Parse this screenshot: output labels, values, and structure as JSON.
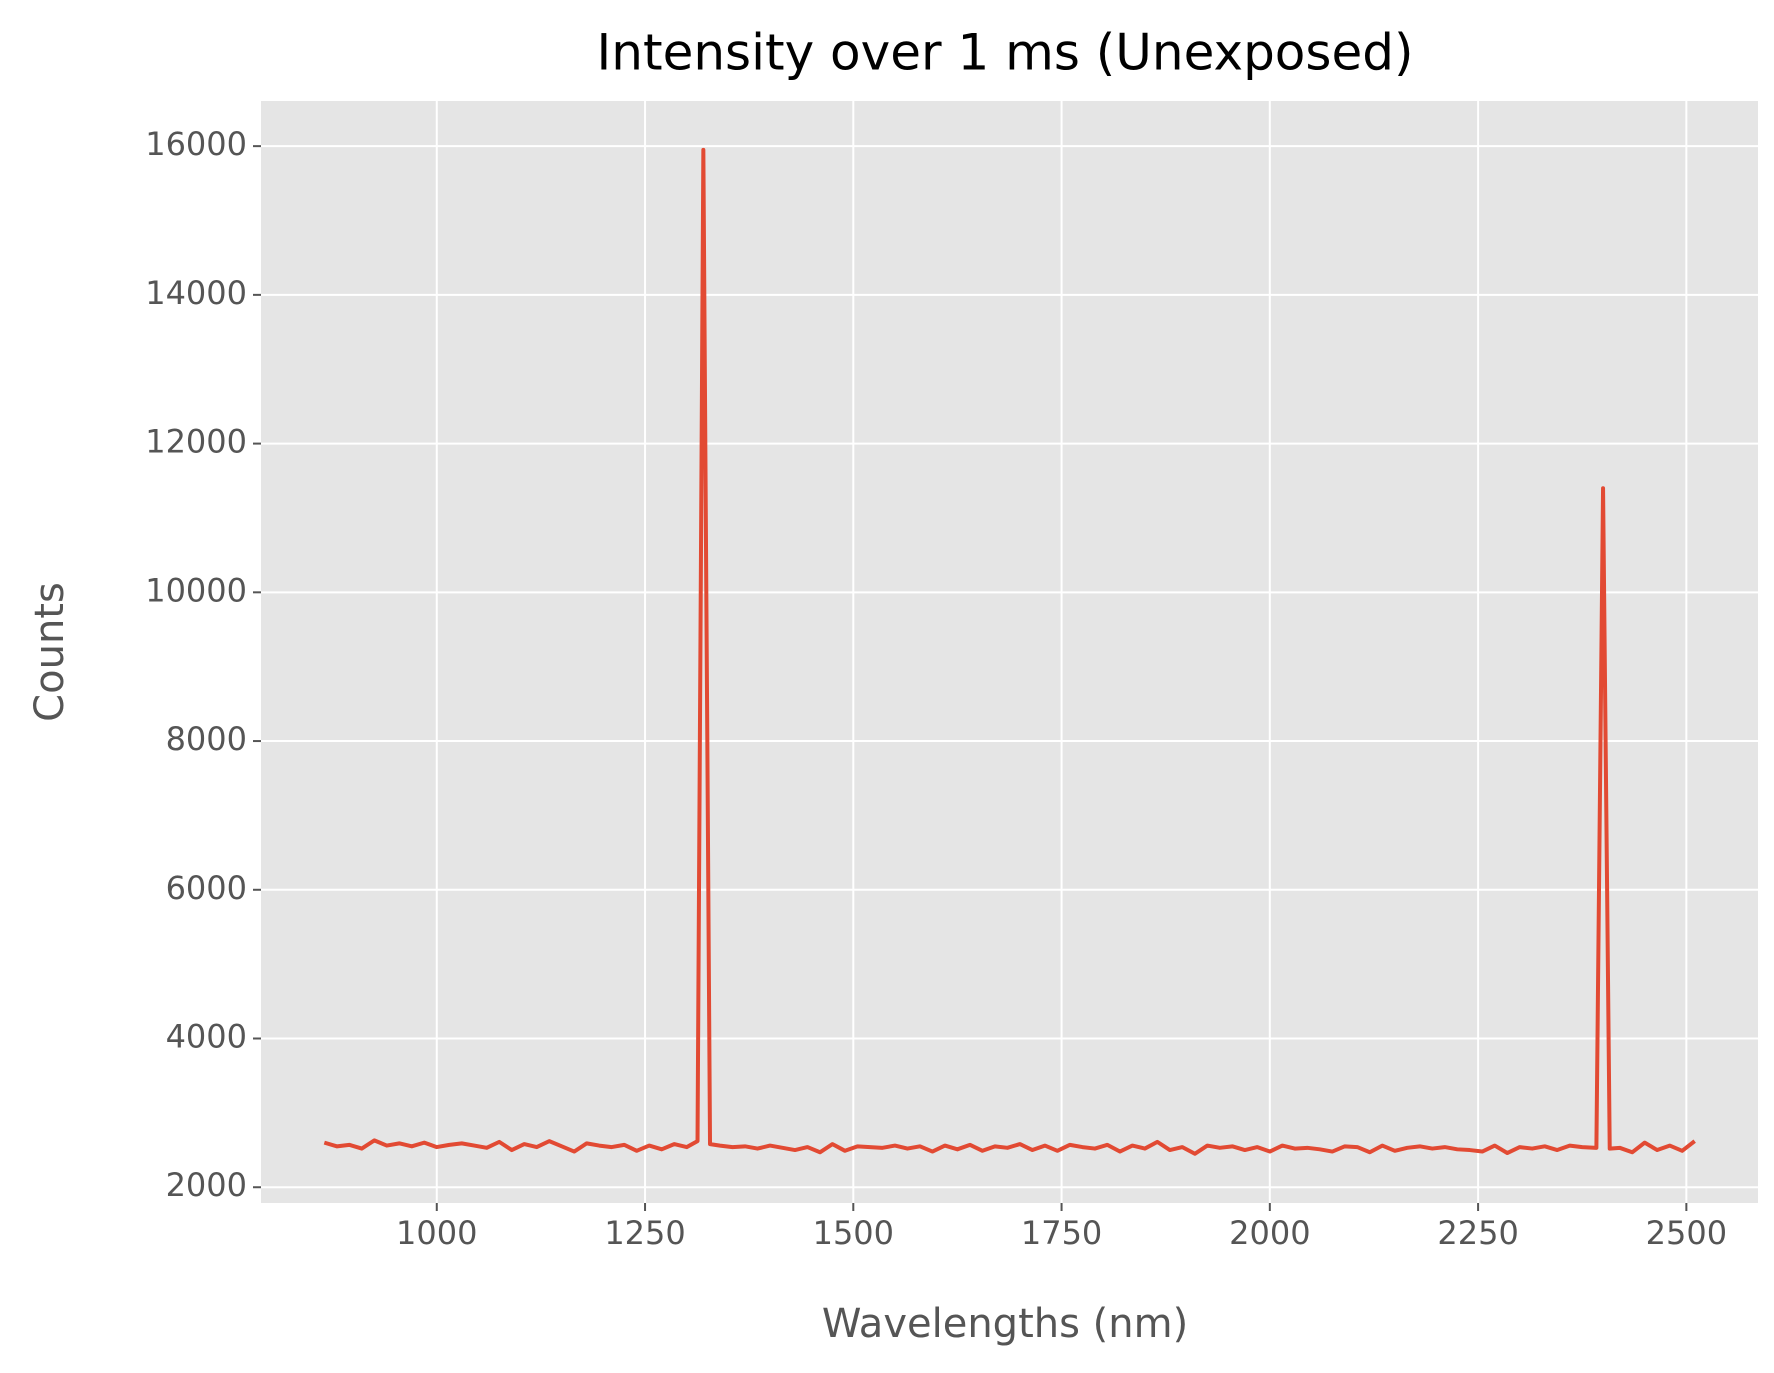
{
  "chart_data": {
    "type": "line",
    "title": "Intensity over 1 ms (Unexposed)",
    "x_label": "Wavelengths (nm)",
    "y_label": "Counts",
    "color": "#E24A33",
    "grid": true,
    "xlim": [
      789,
      2586
    ],
    "xticks": [
      1000,
      1250,
      1500,
      1750,
      2000,
      2250,
      2500
    ],
    "ylim": [
      1788,
      16607
    ],
    "yticks": [
      2000,
      4000,
      6000,
      8000,
      10000,
      12000,
      14000,
      16000
    ],
    "x": [
      865,
      880,
      895,
      910,
      925,
      940,
      955,
      970,
      985,
      1000,
      1015,
      1030,
      1045,
      1060,
      1075,
      1090,
      1105,
      1120,
      1135,
      1150,
      1165,
      1180,
      1195,
      1210,
      1225,
      1240,
      1255,
      1270,
      1285,
      1300,
      1313,
      1320,
      1328,
      1340,
      1355,
      1370,
      1385,
      1400,
      1415,
      1430,
      1445,
      1460,
      1475,
      1490,
      1505,
      1520,
      1535,
      1550,
      1565,
      1580,
      1595,
      1610,
      1625,
      1640,
      1655,
      1670,
      1685,
      1700,
      1715,
      1730,
      1745,
      1760,
      1775,
      1790,
      1805,
      1820,
      1835,
      1850,
      1865,
      1880,
      1895,
      1910,
      1925,
      1940,
      1955,
      1970,
      1985,
      2000,
      2015,
      2030,
      2045,
      2060,
      2075,
      2090,
      2105,
      2120,
      2135,
      2150,
      2165,
      2180,
      2195,
      2210,
      2225,
      2240,
      2255,
      2270,
      2285,
      2300,
      2315,
      2330,
      2345,
      2360,
      2375,
      2392,
      2400,
      2408,
      2420,
      2435,
      2450,
      2465,
      2480,
      2495,
      2510
    ],
    "values": [
      2600,
      2550,
      2570,
      2520,
      2630,
      2560,
      2590,
      2550,
      2600,
      2540,
      2570,
      2590,
      2560,
      2530,
      2610,
      2500,
      2580,
      2540,
      2620,
      2550,
      2480,
      2590,
      2560,
      2540,
      2570,
      2490,
      2560,
      2510,
      2580,
      2540,
      2620,
      15950,
      2580,
      2560,
      2540,
      2550,
      2520,
      2560,
      2530,
      2500,
      2540,
      2470,
      2580,
      2490,
      2550,
      2540,
      2530,
      2560,
      2520,
      2550,
      2480,
      2560,
      2510,
      2570,
      2490,
      2550,
      2530,
      2580,
      2500,
      2560,
      2490,
      2570,
      2540,
      2520,
      2570,
      2480,
      2560,
      2520,
      2610,
      2500,
      2540,
      2450,
      2560,
      2530,
      2550,
      2500,
      2540,
      2480,
      2560,
      2520,
      2530,
      2510,
      2480,
      2550,
      2540,
      2470,
      2560,
      2490,
      2530,
      2550,
      2520,
      2540,
      2510,
      2500,
      2480,
      2560,
      2460,
      2540,
      2520,
      2550,
      2500,
      2560,
      2540,
      2530,
      11400,
      2520,
      2530,
      2470,
      2600,
      2500,
      2560,
      2490,
      2620
    ]
  }
}
